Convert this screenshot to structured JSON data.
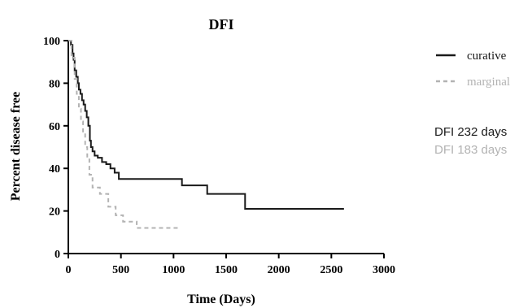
{
  "chart_data": {
    "type": "line",
    "title": "DFI",
    "xlabel": "Time (Days)",
    "ylabel": "Percent disease free",
    "xlim": [
      0,
      3000
    ],
    "ylim": [
      0,
      100
    ],
    "xticks": [
      "0",
      "500",
      "1000",
      "1500",
      "2000",
      "2500",
      "3000"
    ],
    "yticks": [
      "0",
      "20",
      "40",
      "60",
      "80",
      "100"
    ],
    "grid": false,
    "legend": "right",
    "series": [
      {
        "name": "curative",
        "color": "#1a1a1a",
        "style": "solid",
        "step": true,
        "x": [
          0,
          25,
          40,
          50,
          60,
          75,
          90,
          100,
          115,
          130,
          145,
          160,
          175,
          190,
          205,
          215,
          230,
          250,
          280,
          320,
          360,
          400,
          440,
          480,
          1080,
          1320,
          1680,
          2620
        ],
        "y": [
          100,
          98,
          94,
          91,
          86,
          83,
          80,
          77,
          75,
          72,
          70,
          67,
          64,
          60,
          53,
          50,
          48,
          46,
          45,
          43,
          42,
          40,
          38,
          35,
          32,
          28,
          21,
          21
        ]
      },
      {
        "name": "marginal",
        "color": "#b3b3b3",
        "style": "dashed",
        "step": true,
        "x": [
          0,
          30,
          60,
          80,
          100,
          120,
          140,
          160,
          180,
          200,
          230,
          300,
          380,
          450,
          520,
          650,
          1060
        ],
        "y": [
          100,
          92,
          82,
          75,
          68,
          62,
          56,
          50,
          45,
          37,
          31,
          28,
          22,
          18,
          15,
          12,
          12
        ]
      }
    ],
    "annotations": [
      {
        "text": "DFI 232 days",
        "color": "#1a1a1a"
      },
      {
        "text": "DFI 183 days",
        "color": "#b3b3b3"
      }
    ]
  }
}
